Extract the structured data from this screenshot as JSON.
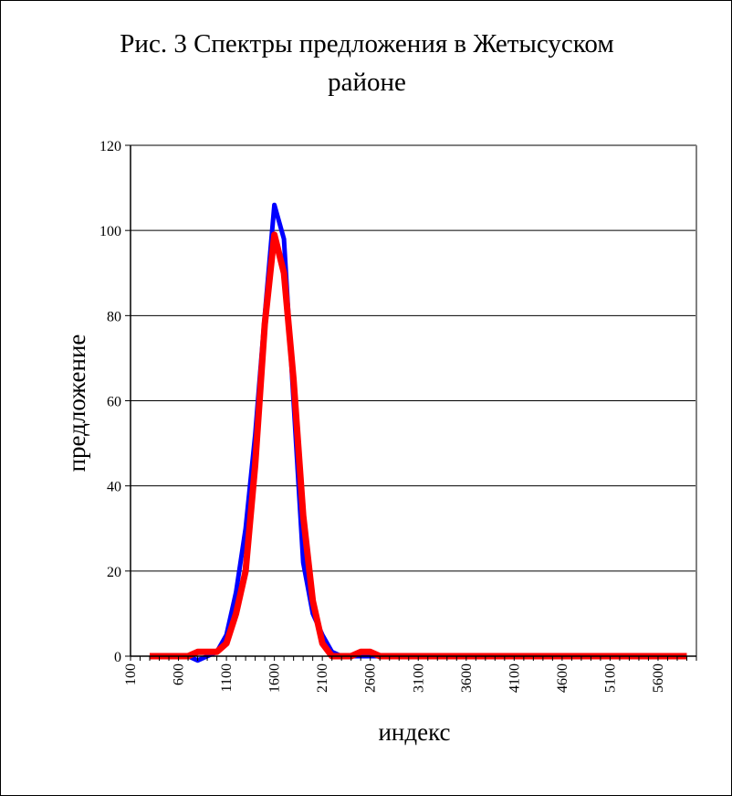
{
  "chart_data": {
    "type": "line",
    "title_line1": "Рис. 3 Спектры предложения в Жетысуском",
    "title_line2": "районе",
    "xlabel": "индекс",
    "ylabel": "предложение",
    "ylim": [
      0,
      120
    ],
    "y_ticks": [
      0,
      20,
      40,
      60,
      80,
      100,
      120
    ],
    "x_ticks": [
      100,
      600,
      1100,
      1600,
      2100,
      2600,
      3100,
      3600,
      4100,
      4600,
      5100,
      5600
    ],
    "xlim": [
      100,
      6000
    ],
    "grid": true,
    "series": [
      {
        "color": "#0000ff",
        "x": [
          300,
          400,
          500,
          600,
          700,
          800,
          900,
          1000,
          1100,
          1200,
          1300,
          1400,
          1500,
          1600,
          1700,
          1800,
          1900,
          2000,
          2100,
          2200,
          2300,
          2400,
          2500,
          2600,
          2700,
          2800,
          2900,
          3000,
          3200,
          3500,
          4000,
          4500,
          5000,
          5500,
          5900
        ],
        "values": [
          0,
          0,
          0,
          0,
          0,
          -1,
          0,
          1,
          5,
          15,
          30,
          52,
          80,
          106,
          98,
          60,
          22,
          10,
          5,
          1,
          0,
          0,
          0,
          0,
          0,
          0,
          0,
          0,
          0,
          0,
          0,
          0,
          0,
          0,
          0
        ]
      },
      {
        "color": "#ff0000",
        "x": [
          300,
          400,
          500,
          600,
          700,
          800,
          900,
          1000,
          1100,
          1200,
          1300,
          1400,
          1500,
          1600,
          1700,
          1800,
          1900,
          2000,
          2100,
          2200,
          2300,
          2400,
          2500,
          2600,
          2700,
          2800,
          2900,
          3000,
          3200,
          3500,
          4000,
          4500,
          5000,
          5500,
          5900
        ],
        "values": [
          0,
          0,
          0,
          0,
          0,
          1,
          1,
          1,
          3,
          10,
          20,
          45,
          78,
          99,
          90,
          65,
          33,
          13,
          3,
          0,
          0,
          0,
          1,
          1,
          0,
          0,
          0,
          0,
          0,
          0,
          0,
          0,
          0,
          0,
          0
        ]
      }
    ]
  }
}
